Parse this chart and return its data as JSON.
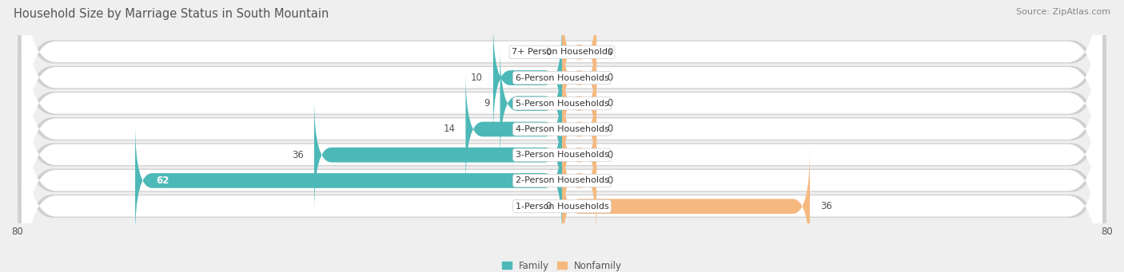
{
  "title": "Household Size by Marriage Status in South Mountain",
  "source": "Source: ZipAtlas.com",
  "categories": [
    "7+ Person Households",
    "6-Person Households",
    "5-Person Households",
    "4-Person Households",
    "3-Person Households",
    "2-Person Households",
    "1-Person Households"
  ],
  "family": [
    0,
    10,
    9,
    14,
    36,
    62,
    0
  ],
  "nonfamily": [
    0,
    0,
    0,
    0,
    0,
    0,
    36
  ],
  "family_color": "#4db8b8",
  "nonfamily_color": "#f5b97f",
  "nonfamily_stub": 5,
  "xlim_left": -80,
  "xlim_right": 80,
  "bg_color": "#efefef",
  "row_bg_color": "#ffffff",
  "row_shadow_color": "#d0d0d0",
  "title_fontsize": 10.5,
  "label_fontsize": 8.5,
  "tick_fontsize": 8.5,
  "source_fontsize": 8,
  "cat_label_fontsize": 8
}
